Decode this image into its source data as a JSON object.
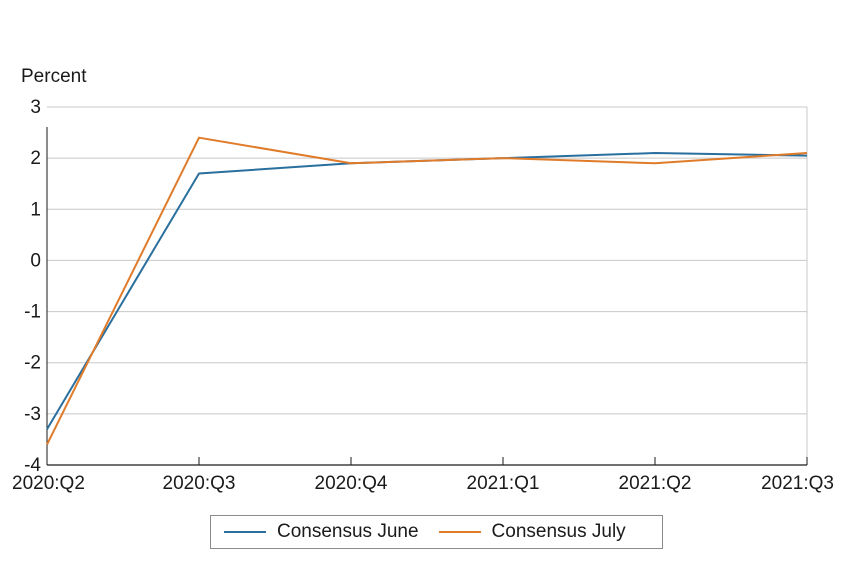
{
  "chart_data": {
    "type": "line",
    "title": "",
    "xlabel": "",
    "ylabel": "Percent",
    "categories": [
      "2020:Q2",
      "2020:Q3",
      "2020:Q4",
      "2021:Q1",
      "2021:Q2",
      "2021:Q3"
    ],
    "ylim": [
      -4,
      3
    ],
    "yticks": [
      "3",
      "2",
      "1",
      "0",
      "-1",
      "-2",
      "-3",
      "-4"
    ],
    "grid": true,
    "legend_position": "bottom",
    "series": [
      {
        "name": "Consensus June",
        "color": "#2a6f9e",
        "values": [
          -3.3,
          1.7,
          1.9,
          2.0,
          2.1,
          2.05
        ]
      },
      {
        "name": "Consensus July",
        "color": "#e07b2a",
        "values": [
          -3.6,
          2.4,
          1.9,
          2.0,
          1.9,
          2.1
        ]
      }
    ]
  }
}
